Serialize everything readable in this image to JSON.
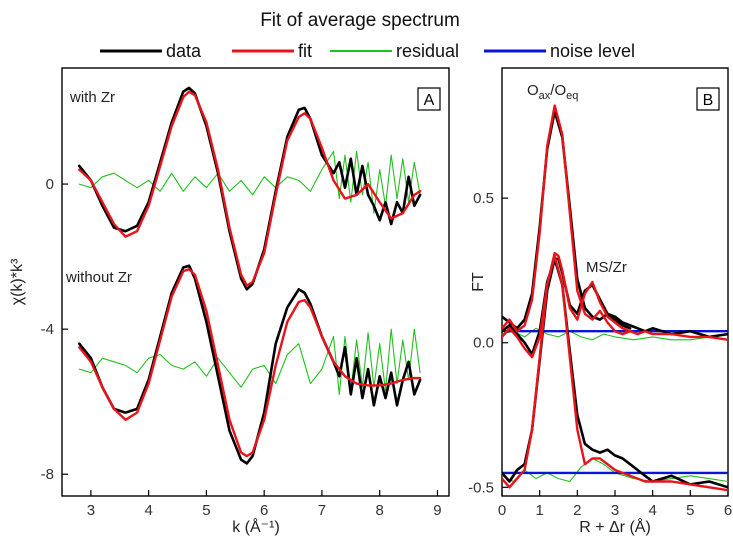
{
  "chart_data": [
    {
      "type": "line",
      "title": "Fit of average spectrum",
      "legend": {
        "placement": "top",
        "entries": [
          {
            "name": "data",
            "color": "#000000"
          },
          {
            "name": "fit",
            "color": "#e8141a"
          },
          {
            "name": "residual",
            "color": "#22c01e"
          },
          {
            "name": "noise level",
            "color": "#0a14d8"
          }
        ]
      },
      "panel_label": "A",
      "xlabel": "k (Å⁻¹)",
      "ylabel": "χ(k)*k³",
      "xlim": [
        2.5,
        9.2
      ],
      "ylim": [
        -8.6,
        3.2
      ],
      "xticks": [
        3,
        4,
        5,
        6,
        7,
        8,
        9
      ],
      "yticks": [
        0,
        -4,
        -8
      ],
      "annotations": [
        "with Zr",
        "without Zr"
      ],
      "series": [
        {
          "name": "fit",
          "role": "with Zr",
          "x": [
            2.8,
            3.0,
            3.2,
            3.4,
            3.6,
            3.8,
            4.0,
            4.2,
            4.4,
            4.6,
            4.7,
            4.8,
            5.0,
            5.2,
            5.4,
            5.6,
            5.7,
            5.8,
            6.0,
            6.2,
            6.4,
            6.6,
            6.7,
            6.8,
            7.0,
            7.2,
            7.4,
            7.6,
            7.8,
            8.0,
            8.2,
            8.4,
            8.6,
            8.7
          ],
          "y": [
            0.4,
            0.1,
            -0.5,
            -1.1,
            -1.45,
            -1.3,
            -0.6,
            0.5,
            1.6,
            2.4,
            2.55,
            2.45,
            1.7,
            0.4,
            -1.2,
            -2.5,
            -2.8,
            -2.7,
            -1.9,
            -0.3,
            1.2,
            1.85,
            1.95,
            1.8,
            1.0,
            0.1,
            -0.4,
            -0.3,
            0.0,
            -0.5,
            -0.95,
            -0.8,
            -0.3,
            -0.2
          ]
        },
        {
          "name": "data",
          "role": "with Zr",
          "x": [
            2.8,
            3.0,
            3.2,
            3.4,
            3.6,
            3.8,
            4.0,
            4.2,
            4.4,
            4.6,
            4.7,
            4.8,
            5.0,
            5.2,
            5.4,
            5.6,
            5.7,
            5.8,
            6.0,
            6.2,
            6.4,
            6.6,
            6.7,
            6.8,
            7.0,
            7.2,
            7.3,
            7.4,
            7.5,
            7.6,
            7.7,
            7.8,
            7.9,
            8.0,
            8.1,
            8.2,
            8.3,
            8.4,
            8.5,
            8.6,
            8.7
          ],
          "y": [
            0.5,
            0.1,
            -0.6,
            -1.2,
            -1.3,
            -1.15,
            -0.5,
            0.6,
            1.7,
            2.55,
            2.65,
            2.5,
            1.6,
            0.3,
            -1.3,
            -2.6,
            -2.9,
            -2.75,
            -1.8,
            -0.2,
            1.3,
            2.05,
            2.1,
            1.8,
            0.8,
            0.3,
            0.6,
            -0.1,
            0.7,
            -0.3,
            0.5,
            -0.3,
            -0.6,
            -1.0,
            -0.5,
            -1.1,
            -0.5,
            -0.8,
            0.2,
            -0.6,
            -0.3
          ]
        },
        {
          "name": "residual",
          "role": "with Zr",
          "x": [
            2.8,
            3.0,
            3.2,
            3.4,
            3.6,
            3.8,
            4.0,
            4.2,
            4.4,
            4.6,
            4.8,
            5.0,
            5.2,
            5.4,
            5.6,
            5.8,
            6.0,
            6.2,
            6.4,
            6.6,
            6.8,
            7.0,
            7.2,
            7.3,
            7.4,
            7.5,
            7.6,
            7.7,
            7.8,
            7.9,
            8.0,
            8.1,
            8.2,
            8.3,
            8.4,
            8.5,
            8.6,
            8.7
          ],
          "y": [
            0.0,
            -0.1,
            0.2,
            0.3,
            0.1,
            -0.1,
            0.1,
            -0.2,
            0.3,
            -0.2,
            0.2,
            -0.1,
            0.3,
            -0.2,
            0.1,
            -0.3,
            0.2,
            -0.1,
            0.2,
            0.1,
            -0.2,
            0.4,
            0.9,
            -0.4,
            0.8,
            -0.5,
            0.9,
            -0.3,
            0.6,
            -0.8,
            0.4,
            -0.6,
            0.8,
            -0.4,
            0.7,
            -0.5,
            0.6,
            -0.3
          ]
        },
        {
          "name": "fit",
          "role": "without Zr",
          "x": [
            2.8,
            3.0,
            3.2,
            3.4,
            3.6,
            3.8,
            4.0,
            4.2,
            4.4,
            4.6,
            4.7,
            4.8,
            5.0,
            5.2,
            5.4,
            5.6,
            5.7,
            5.8,
            6.0,
            6.2,
            6.4,
            6.6,
            6.7,
            6.8,
            7.0,
            7.2,
            7.4,
            7.6,
            7.8,
            8.0,
            8.2,
            8.4,
            8.6,
            8.7
          ],
          "y": [
            -4.5,
            -4.9,
            -5.6,
            -6.2,
            -6.5,
            -6.3,
            -5.5,
            -4.3,
            -3.1,
            -2.4,
            -2.35,
            -2.5,
            -3.5,
            -5.0,
            -6.5,
            -7.4,
            -7.5,
            -7.4,
            -6.5,
            -5.0,
            -3.8,
            -3.25,
            -3.2,
            -3.4,
            -4.2,
            -4.9,
            -5.3,
            -5.5,
            -5.55,
            -5.55,
            -5.5,
            -5.4,
            -5.35,
            -5.35
          ]
        },
        {
          "name": "data",
          "role": "without Zr",
          "x": [
            2.8,
            3.0,
            3.2,
            3.4,
            3.6,
            3.8,
            4.0,
            4.2,
            4.4,
            4.6,
            4.7,
            4.8,
            5.0,
            5.2,
            5.4,
            5.6,
            5.7,
            5.8,
            6.0,
            6.2,
            6.4,
            6.6,
            6.7,
            6.8,
            7.0,
            7.2,
            7.3,
            7.4,
            7.5,
            7.6,
            7.7,
            7.8,
            7.9,
            8.0,
            8.1,
            8.2,
            8.3,
            8.4,
            8.5,
            8.6,
            8.7
          ],
          "y": [
            -4.4,
            -4.8,
            -5.6,
            -6.2,
            -6.3,
            -6.2,
            -5.4,
            -4.2,
            -3.0,
            -2.3,
            -2.25,
            -2.6,
            -3.8,
            -5.3,
            -6.8,
            -7.6,
            -7.7,
            -7.5,
            -6.3,
            -4.4,
            -3.4,
            -2.9,
            -3.0,
            -3.3,
            -4.2,
            -4.9,
            -5.3,
            -4.5,
            -5.8,
            -4.8,
            -5.9,
            -5.1,
            -6.1,
            -5.3,
            -5.9,
            -5.2,
            -6.1,
            -5.4,
            -4.9,
            -5.8,
            -5.4
          ]
        },
        {
          "name": "residual",
          "role": "without Zr",
          "x": [
            2.8,
            3.0,
            3.2,
            3.4,
            3.6,
            3.8,
            4.0,
            4.2,
            4.4,
            4.6,
            4.8,
            5.0,
            5.2,
            5.4,
            5.6,
            5.8,
            6.0,
            6.2,
            6.4,
            6.6,
            6.8,
            7.0,
            7.2,
            7.3,
            7.4,
            7.5,
            7.6,
            7.7,
            7.8,
            7.9,
            8.0,
            8.1,
            8.2,
            8.3,
            8.4,
            8.5,
            8.6,
            8.7
          ],
          "y": [
            -5.1,
            -5.2,
            -4.8,
            -4.9,
            -5.0,
            -5.2,
            -4.8,
            -4.7,
            -5.0,
            -5.1,
            -4.9,
            -5.3,
            -4.8,
            -5.2,
            -5.6,
            -5.1,
            -5.0,
            -5.5,
            -4.7,
            -4.4,
            -5.5,
            -5.1,
            -4.2,
            -5.8,
            -4.2,
            -5.7,
            -4.3,
            -5.6,
            -4.1,
            -5.6,
            -4.4,
            -5.7,
            -4.0,
            -5.5,
            -4.3,
            -5.4,
            -4.0,
            -5.2
          ]
        }
      ]
    },
    {
      "type": "line",
      "panel_label": "B",
      "xlabel": "R + Δr (Å)",
      "ylabel": "FT",
      "xlim": [
        0,
        6
      ],
      "ylim": [
        -0.53,
        0.95
      ],
      "xticks": [
        0,
        1,
        2,
        3,
        4,
        5,
        6
      ],
      "yticks": [
        0.5,
        0.0,
        -0.5
      ],
      "ytick_labels": [
        "0.5",
        "0.0",
        "-0.5"
      ],
      "annotations": [
        "O",
        "ax",
        "/O",
        "eq",
        "MS/Zr"
      ],
      "series": [
        {
          "name": "noise level",
          "role": "with Zr",
          "x": [
            0,
            6
          ],
          "y": [
            0.04,
            0.04
          ]
        },
        {
          "name": "noise level",
          "role": "without Zr",
          "x": [
            0,
            6
          ],
          "y": [
            -0.45,
            -0.45
          ]
        },
        {
          "name": "fit",
          "role": "with Zr, magnitude",
          "x": [
            0.0,
            0.2,
            0.4,
            0.6,
            0.8,
            1.0,
            1.2,
            1.4,
            1.6,
            1.8,
            2.0,
            2.2,
            2.4,
            2.6,
            2.8,
            3.0,
            3.2,
            3.4,
            3.6,
            3.8,
            4.0,
            4.5,
            5.0,
            5.5,
            6.0
          ],
          "y": [
            0.05,
            0.08,
            0.04,
            0.06,
            0.15,
            0.38,
            0.68,
            0.82,
            0.72,
            0.45,
            0.18,
            0.1,
            0.08,
            0.11,
            0.07,
            0.04,
            0.03,
            0.04,
            0.03,
            0.04,
            0.03,
            0.03,
            0.02,
            0.02,
            0.01
          ]
        },
        {
          "name": "data",
          "role": "with Zr, magnitude",
          "x": [
            0.0,
            0.2,
            0.4,
            0.6,
            0.8,
            1.0,
            1.2,
            1.4,
            1.6,
            1.8,
            2.0,
            2.2,
            2.4,
            2.6,
            2.8,
            3.0,
            3.2,
            3.4,
            3.6,
            3.8,
            4.0,
            4.5,
            5.0,
            5.5,
            6.0
          ],
          "y": [
            0.09,
            0.07,
            0.05,
            0.08,
            0.17,
            0.4,
            0.67,
            0.8,
            0.71,
            0.47,
            0.22,
            0.12,
            0.09,
            0.08,
            0.1,
            0.09,
            0.07,
            0.06,
            0.05,
            0.04,
            0.05,
            0.03,
            0.04,
            0.02,
            0.03
          ]
        },
        {
          "name": "residual",
          "role": "with Zr, magnitude",
          "x": [
            0.0,
            0.3,
            0.6,
            0.9,
            1.2,
            1.5,
            1.8,
            2.1,
            2.4,
            2.7,
            3.0,
            3.5,
            4.0,
            4.5,
            5.0,
            5.5,
            6.0
          ],
          "y": [
            0.03,
            0.04,
            0.02,
            0.05,
            0.03,
            0.02,
            0.04,
            0.02,
            0.01,
            0.03,
            0.02,
            0.01,
            0.02,
            0.01,
            0.01,
            0.02,
            0.01
          ]
        },
        {
          "name": "fit",
          "role": "with Zr, imaginary part",
          "x": [
            0.0,
            0.2,
            0.4,
            0.6,
            0.8,
            1.0,
            1.2,
            1.4,
            1.5,
            1.6,
            1.8,
            2.0,
            2.2,
            2.4,
            2.6,
            2.8,
            3.0,
            3.2,
            3.4
          ],
          "y": [
            0.02,
            0.05,
            0.02,
            -0.02,
            -0.05,
            0.02,
            0.2,
            0.31,
            0.3,
            0.25,
            0.12,
            0.08,
            0.17,
            0.21,
            0.14,
            0.09,
            0.07,
            0.05,
            0.04
          ]
        },
        {
          "name": "data",
          "role": "with Zr, imaginary part",
          "x": [
            0.0,
            0.2,
            0.4,
            0.6,
            0.8,
            1.0,
            1.2,
            1.4,
            1.5,
            1.6,
            1.8,
            2.0,
            2.2,
            2.4,
            2.6,
            2.8,
            3.0,
            3.2,
            3.4
          ],
          "y": [
            0.04,
            0.06,
            0.03,
            0.0,
            -0.04,
            0.04,
            0.21,
            0.29,
            0.29,
            0.24,
            0.13,
            0.1,
            0.18,
            0.2,
            0.15,
            0.1,
            0.08,
            0.06,
            0.05
          ]
        },
        {
          "name": "fit",
          "role": "without Zr, magnitude",
          "x": [
            0.0,
            0.2,
            0.4,
            0.6,
            0.8,
            1.0,
            1.2,
            1.4,
            1.6,
            1.8,
            2.0,
            2.2,
            2.4,
            2.6,
            2.8,
            3.0,
            3.2,
            3.4,
            3.6,
            3.8,
            4.0,
            4.5,
            5.0,
            5.5,
            6.0
          ],
          "y": [
            -0.47,
            -0.5,
            -0.47,
            -0.44,
            -0.3,
            -0.05,
            0.2,
            0.3,
            0.2,
            -0.05,
            -0.3,
            -0.42,
            -0.4,
            -0.4,
            -0.42,
            -0.44,
            -0.45,
            -0.46,
            -0.47,
            -0.48,
            -0.48,
            -0.48,
            -0.49,
            -0.5,
            -0.51
          ]
        },
        {
          "name": "data",
          "role": "without Zr, magnitude",
          "x": [
            0.0,
            0.2,
            0.4,
            0.6,
            0.8,
            1.0,
            1.2,
            1.4,
            1.6,
            1.8,
            2.0,
            2.2,
            2.4,
            2.6,
            2.8,
            3.0,
            3.2,
            3.4,
            3.6,
            3.8,
            4.0,
            4.5,
            5.0,
            5.5,
            6.0
          ],
          "y": [
            -0.45,
            -0.48,
            -0.44,
            -0.42,
            -0.3,
            -0.06,
            0.18,
            0.29,
            0.2,
            -0.03,
            -0.25,
            -0.35,
            -0.37,
            -0.38,
            -0.37,
            -0.39,
            -0.4,
            -0.42,
            -0.44,
            -0.46,
            -0.48,
            -0.46,
            -0.49,
            -0.48,
            -0.5
          ]
        },
        {
          "name": "residual",
          "role": "without Zr, magnitude",
          "x": [
            0.0,
            0.3,
            0.6,
            0.9,
            1.2,
            1.5,
            1.8,
            2.1,
            2.4,
            2.7,
            3.0,
            3.5,
            4.0,
            4.5,
            5.0,
            5.5,
            6.0
          ],
          "y": [
            -0.46,
            -0.48,
            -0.44,
            -0.47,
            -0.45,
            -0.47,
            -0.48,
            -0.43,
            -0.4,
            -0.42,
            -0.45,
            -0.47,
            -0.48,
            -0.47,
            -0.46,
            -0.47,
            -0.48
          ]
        }
      ]
    }
  ]
}
